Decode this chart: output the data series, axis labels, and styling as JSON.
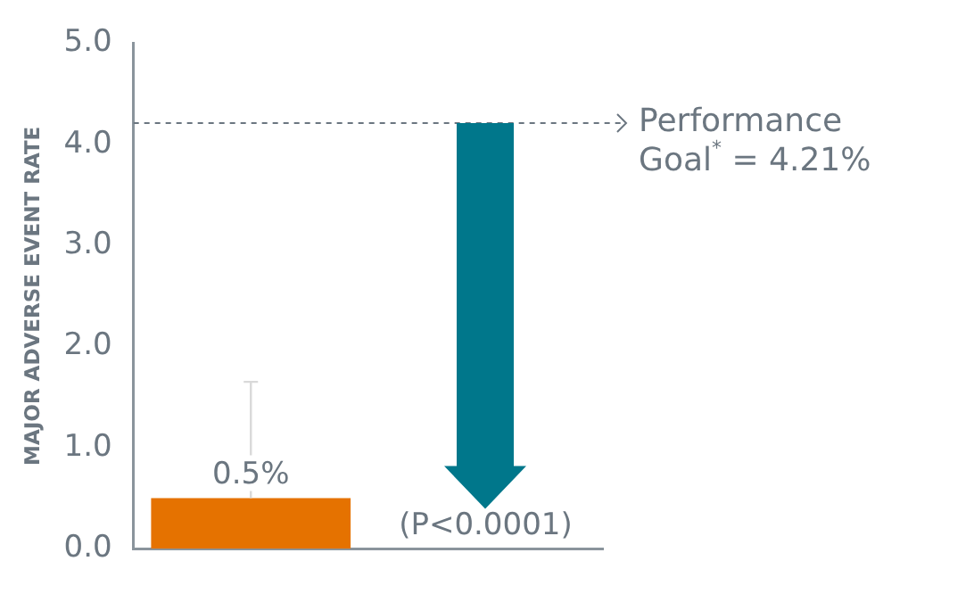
{
  "chart_data": {
    "type": "bar",
    "ylabel": "MAJOR ADVERSE EVENT RATE",
    "categories": [
      null,
      null
    ],
    "values": [
      0.5,
      null
    ],
    "colors": [
      "#e57200",
      "#00778b"
    ],
    "value_labels": [
      "0.5%",
      null
    ],
    "errors": [
      [
        0.5,
        1.65
      ],
      null
    ],
    "ylim": [
      0,
      5
    ],
    "yticks": [
      {
        "value": 0,
        "label": "0.0"
      },
      {
        "value": 1,
        "label": "1.0"
      },
      {
        "value": 2,
        "label": "2.0"
      },
      {
        "value": 3,
        "label": "3.0"
      },
      {
        "value": 4,
        "label": "4.0"
      },
      {
        "value": 5,
        "label": "5.0"
      }
    ],
    "ref_lines": [
      {
        "axis": "y",
        "value": 4.21,
        "label": "Performance Goal$^{*}$ = 4.21%",
        "color": "#6b7680",
        "line_style": "dashed"
      }
    ],
    "annotations": [
      "(P<0.0001)"
    ],
    "grid": false,
    "legend": false
  }
}
